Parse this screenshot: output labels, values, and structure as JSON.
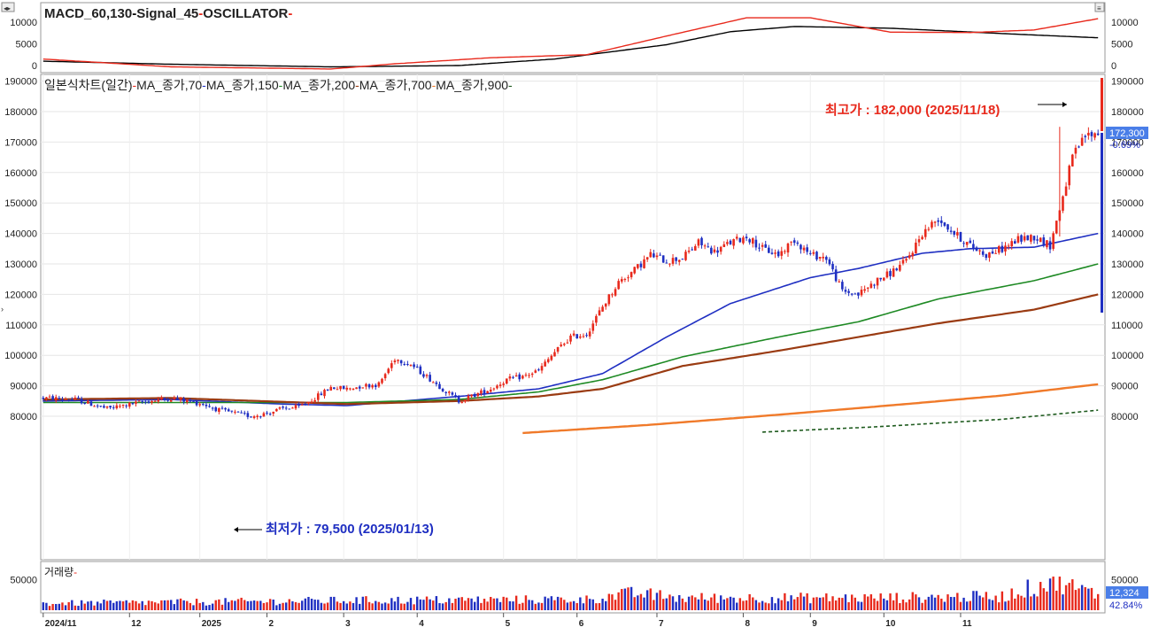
{
  "macd_panel": {
    "legend": [
      {
        "label": "MACD_60,130",
        "color": "#000000"
      },
      {
        "label": "Signal_45",
        "color": "#e8291c"
      },
      {
        "label": "OSCILLATOR",
        "color": "#e8291c"
      }
    ],
    "left_ticks": [
      "10000",
      "5000",
      "0"
    ],
    "right_ticks": [
      "10000",
      "5000",
      "0"
    ]
  },
  "price_panel": {
    "legend": [
      {
        "label": "일본식차트(일간)",
        "color": "#e8291c"
      },
      {
        "label": "MA_종가,70",
        "color": "#1f2fc2"
      },
      {
        "label": "MA_종가,150",
        "color": "#1e8a24"
      },
      {
        "label": "MA_종가,200",
        "color": "#9a3b12"
      },
      {
        "label": "MA_종가,700",
        "color": "#f07a2a"
      },
      {
        "label": "MA_종가,900",
        "color": "#1d5a1d"
      }
    ],
    "left_ticks": [
      "190000",
      "180000",
      "170000",
      "160000",
      "150000",
      "140000",
      "130000",
      "120000",
      "110000",
      "100000",
      "90000",
      "80000"
    ],
    "right_ticks": [
      "190000",
      "180000",
      "170000",
      "160000",
      "150000",
      "140000",
      "130000",
      "120000",
      "110000",
      "100000",
      "90000",
      "80000"
    ],
    "high_annotation": "최고가 : 182,000 (2025/11/18)",
    "low_annotation": "최저가 : 79,500 (2025/01/13)",
    "current_price": "172,300",
    "change_pct": "-0.69%"
  },
  "volume_panel": {
    "legend": [
      {
        "label": "거래량",
        "color": "#e8291c"
      }
    ],
    "left_ticks": [
      "50000"
    ],
    "right_ticks": [
      "50000"
    ],
    "current_volume": "12,324",
    "volume_pct": "42.84%"
  },
  "x_axis": {
    "labels": [
      "2024/11",
      "12",
      "2025",
      "2",
      "3",
      "4",
      "5",
      "6",
      "7",
      "8",
      "9",
      "10",
      "11"
    ]
  },
  "chart_data": [
    {
      "type": "line",
      "panel": "macd",
      "series": [
        {
          "name": "MACD_60,130",
          "color": "#000000",
          "points": [
            [
              0,
              1000
            ],
            [
              40,
              300
            ],
            [
              90,
              -300
            ],
            [
              130,
              0
            ],
            [
              160,
              1500
            ],
            [
              195,
              4800
            ],
            [
              215,
              7800
            ],
            [
              235,
              9000
            ],
            [
              265,
              8600
            ],
            [
              305,
              7200
            ],
            [
              330,
              6400
            ]
          ]
        },
        {
          "name": "Signal_45",
          "color": "#e8291c",
          "points": [
            [
              0,
              1500
            ],
            [
              40,
              -300
            ],
            [
              90,
              -800
            ],
            [
              110,
              400
            ],
            [
              140,
              1800
            ],
            [
              170,
              2500
            ],
            [
              195,
              6800
            ],
            [
              220,
              11000
            ],
            [
              240,
              11000
            ],
            [
              265,
              7700
            ],
            [
              290,
              7600
            ],
            [
              310,
              8200
            ],
            [
              330,
              10800
            ]
          ]
        }
      ]
    },
    {
      "type": "candlestick",
      "panel": "price",
      "xlabels": [
        "2024/11",
        "12",
        "2025",
        "2",
        "3",
        "4",
        "5",
        "6",
        "7",
        "8",
        "9",
        "10",
        "11"
      ],
      "ylim": [
        75000,
        192000
      ],
      "keypoints": [
        [
          0,
          86000
        ],
        [
          10,
          85500
        ],
        [
          20,
          82500
        ],
        [
          30,
          84500
        ],
        [
          40,
          86000
        ],
        [
          50,
          84000
        ],
        [
          55,
          82000
        ],
        [
          60,
          81000
        ],
        [
          65,
          80000
        ],
        [
          70,
          81000
        ],
        [
          75,
          82500
        ],
        [
          80,
          83000
        ],
        [
          85,
          86000
        ],
        [
          90,
          89500
        ],
        [
          95,
          89000
        ],
        [
          100,
          90000
        ],
        [
          105,
          90500
        ],
        [
          110,
          99000
        ],
        [
          115,
          97000
        ],
        [
          120,
          93000
        ],
        [
          125,
          89000
        ],
        [
          130,
          85000
        ],
        [
          135,
          87000
        ],
        [
          140,
          89000
        ],
        [
          145,
          92000
        ],
        [
          150,
          93000
        ],
        [
          155,
          95000
        ],
        [
          160,
          101000
        ],
        [
          165,
          106000
        ],
        [
          170,
          107000
        ],
        [
          175,
          116000
        ],
        [
          180,
          124000
        ],
        [
          185,
          128000
        ],
        [
          190,
          133000
        ],
        [
          195,
          131000
        ],
        [
          200,
          132000
        ],
        [
          205,
          137000
        ],
        [
          210,
          134000
        ],
        [
          215,
          137000
        ],
        [
          220,
          139000
        ],
        [
          225,
          135000
        ],
        [
          230,
          133000
        ],
        [
          235,
          138000
        ],
        [
          240,
          133000
        ],
        [
          245,
          132000
        ],
        [
          250,
          121000
        ],
        [
          255,
          120000
        ],
        [
          260,
          124000
        ],
        [
          265,
          127000
        ],
        [
          270,
          131000
        ],
        [
          275,
          140000
        ],
        [
          280,
          145000
        ],
        [
          285,
          140000
        ],
        [
          290,
          136000
        ],
        [
          295,
          133000
        ],
        [
          300,
          135000
        ],
        [
          305,
          138000
        ],
        [
          310,
          139000
        ],
        [
          315,
          136000
        ],
        [
          318,
          148000
        ],
        [
          322,
          165000
        ],
        [
          326,
          172000
        ],
        [
          330,
          173000
        ]
      ],
      "high": {
        "value": 182000,
        "date": "2025/11/18"
      },
      "low": {
        "value": 79500,
        "date": "2025/01/13"
      }
    },
    {
      "type": "line",
      "panel": "price",
      "series": [
        {
          "name": "MA_종가,70",
          "color": "#1f2fc2",
          "points": [
            [
              0,
              85000
            ],
            [
              40,
              85500
            ],
            [
              75,
              84000
            ],
            [
              95,
              83500
            ],
            [
              130,
              86500
            ],
            [
              155,
              89000
            ],
            [
              175,
              94000
            ],
            [
              195,
              106000
            ],
            [
              215,
              117000
            ],
            [
              240,
              125500
            ],
            [
              255,
              128500
            ],
            [
              275,
              133500
            ],
            [
              290,
              135000
            ],
            [
              310,
              135500
            ],
            [
              330,
              140000
            ]
          ]
        },
        {
          "name": "MA_종가,150",
          "color": "#1e8a24",
          "points": [
            [
              0,
              84500
            ],
            [
              95,
              84500
            ],
            [
              130,
              85500
            ],
            [
              155,
              88000
            ],
            [
              175,
              92000
            ],
            [
              200,
              99500
            ],
            [
              230,
              106000
            ],
            [
              255,
              111000
            ],
            [
              280,
              118500
            ],
            [
              310,
              124500
            ],
            [
              330,
              130000
            ]
          ]
        },
        {
          "name": "MA_종가,200",
          "color": "#9a3b12",
          "points": [
            [
              0,
              85500
            ],
            [
              40,
              86000
            ],
            [
              95,
              84000
            ],
            [
              130,
              85000
            ],
            [
              155,
              86500
            ],
            [
              175,
              89000
            ],
            [
              200,
              96500
            ],
            [
              230,
              101500
            ],
            [
              255,
              106000
            ],
            [
              280,
              110500
            ],
            [
              310,
              115000
            ],
            [
              330,
              120000
            ]
          ]
        },
        {
          "name": "MA_종가,700",
          "color": "#f07a2a",
          "points": [
            [
              150,
              74500
            ],
            [
              190,
              77200
            ],
            [
              230,
              80500
            ],
            [
              270,
              84000
            ],
            [
              300,
              86800
            ],
            [
              330,
              90500
            ]
          ]
        },
        {
          "name": "MA_종가,900",
          "color": "#1d5a1d",
          "points": [
            [
              225,
              74800
            ],
            [
              260,
              76500
            ],
            [
              300,
              79000
            ],
            [
              330,
              82000
            ]
          ]
        }
      ]
    },
    {
      "type": "bar",
      "panel": "volume",
      "keypoints": [
        [
          0,
          0.22
        ],
        [
          100,
          0.32
        ],
        [
          170,
          0.35
        ],
        [
          185,
          0.55
        ],
        [
          200,
          0.4
        ],
        [
          260,
          0.4
        ],
        [
          300,
          0.45
        ],
        [
          318,
          1.0
        ],
        [
          322,
          0.75
        ],
        [
          330,
          0.5
        ]
      ]
    }
  ]
}
